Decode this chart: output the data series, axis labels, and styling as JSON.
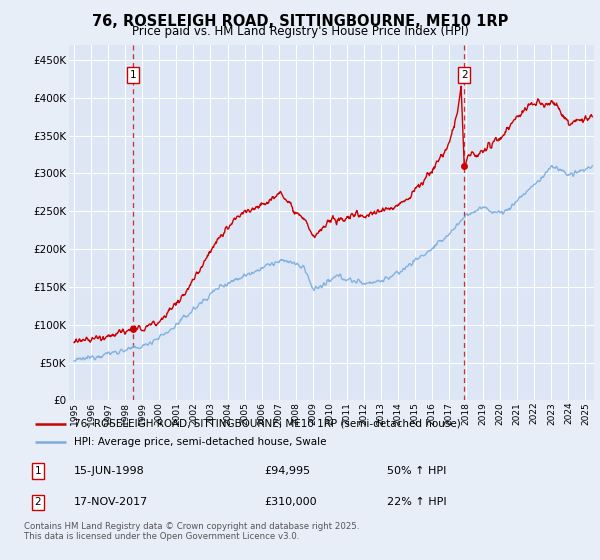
{
  "title": "76, ROSELEIGH ROAD, SITTINGBOURNE, ME10 1RP",
  "subtitle": "Price paid vs. HM Land Registry's House Price Index (HPI)",
  "ylabel_ticks": [
    "£0",
    "£50K",
    "£100K",
    "£150K",
    "£200K",
    "£250K",
    "£300K",
    "£350K",
    "£400K",
    "£450K"
  ],
  "ytick_vals": [
    0,
    50000,
    100000,
    150000,
    200000,
    250000,
    300000,
    350000,
    400000,
    450000
  ],
  "ylim": [
    0,
    470000
  ],
  "xlim_start": 1994.7,
  "xlim_end": 2025.5,
  "background_color": "#e8eef7",
  "plot_bg_color": "#dce6f5",
  "grid_color": "#ffffff",
  "red_line_color": "#cc0000",
  "blue_line_color": "#7aaddc",
  "marker1_date": 1998.46,
  "marker1_price": 94995,
  "marker1_label": "1",
  "marker2_date": 2017.88,
  "marker2_price": 310000,
  "marker2_label": "2",
  "legend_label_red": "76, ROSELEIGH ROAD, SITTINGBOURNE, ME10 1RP (semi-detached house)",
  "legend_label_blue": "HPI: Average price, semi-detached house, Swale",
  "footnote": "Contains HM Land Registry data © Crown copyright and database right 2025.\nThis data is licensed under the Open Government Licence v3.0.",
  "xtick_years": [
    1995,
    1996,
    1997,
    1998,
    1999,
    2000,
    2001,
    2002,
    2003,
    2004,
    2005,
    2006,
    2007,
    2008,
    2009,
    2010,
    2011,
    2012,
    2013,
    2014,
    2015,
    2016,
    2017,
    2018,
    2019,
    2020,
    2021,
    2022,
    2023,
    2024,
    2025
  ]
}
